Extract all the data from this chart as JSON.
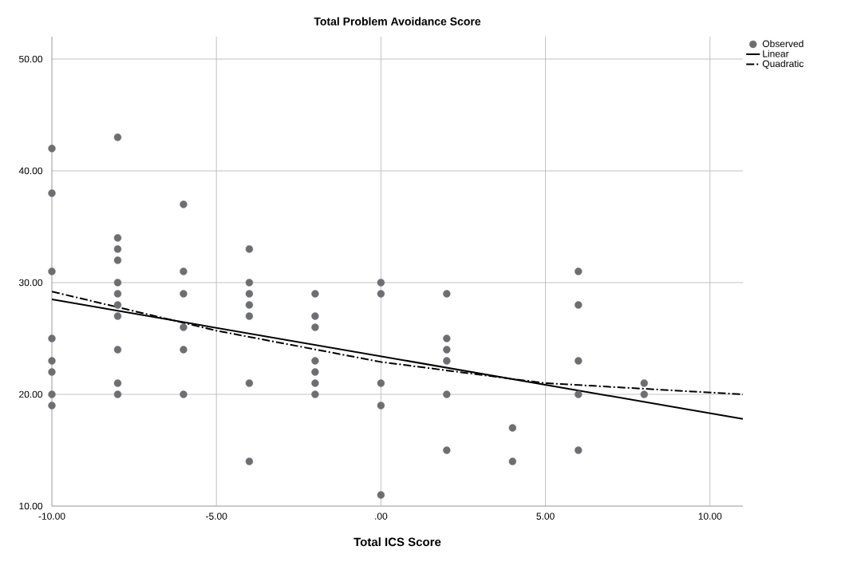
{
  "chart_data": {
    "type": "scatter",
    "title": "Total Problem Avoidance Score",
    "xlabel": "Total ICS Score",
    "xlim": [
      -10,
      11
    ],
    "ylim": [
      10,
      52
    ],
    "xticks": [
      {
        "value": -10,
        "label": "-10.00"
      },
      {
        "value": -5,
        "label": "-5.00"
      },
      {
        "value": 0,
        "label": ".00"
      },
      {
        "value": 5,
        "label": "5.00"
      },
      {
        "value": 10,
        "label": "10.00"
      }
    ],
    "yticks": [
      {
        "value": 10,
        "label": "10.00"
      },
      {
        "value": 20,
        "label": "20.00"
      },
      {
        "value": 30,
        "label": "30.00"
      },
      {
        "value": 40,
        "label": "40.00"
      },
      {
        "value": 50,
        "label": "50.00"
      }
    ],
    "grid": true,
    "legend": "top right",
    "series": [
      {
        "name": "Observed",
        "marker": "circle",
        "color": "#6d6e71",
        "x": [
          -10,
          -10,
          -10,
          -10,
          -10,
          -10,
          -10,
          -10,
          -8,
          -8,
          -8,
          -8,
          -8,
          -8,
          -8,
          -8,
          -8,
          -8,
          -8,
          -6,
          -6,
          -6,
          -6,
          -6,
          -6,
          -4,
          -4,
          -4,
          -4,
          -4,
          -4,
          -4,
          -2,
          -2,
          -2,
          -2,
          -2,
          -2,
          -2,
          0,
          0,
          0,
          0,
          0,
          2,
          2,
          2,
          2,
          2,
          2,
          4,
          4,
          6,
          6,
          6,
          6,
          6,
          8,
          8
        ],
        "values": [
          42,
          38,
          31,
          25,
          23,
          22,
          20,
          19,
          43,
          34,
          33,
          32,
          30,
          29,
          28,
          27,
          24,
          21,
          20,
          37,
          31,
          29,
          26,
          24,
          20,
          33,
          30,
          29,
          28,
          27,
          21,
          14,
          29,
          27,
          26,
          23,
          22,
          21,
          20,
          30,
          29,
          21,
          19,
          11,
          29,
          25,
          24,
          23,
          20,
          15,
          17,
          14,
          31,
          28,
          23,
          20,
          15,
          21,
          20
        ]
      },
      {
        "name": "Linear",
        "type": "line",
        "marker": "none",
        "line_style": "solid",
        "color": "#000000",
        "x": [
          -10,
          11
        ],
        "values": [
          28.5,
          17.8
        ]
      },
      {
        "name": "Quadratic",
        "type": "line",
        "marker": "none",
        "line_style": "dashdot",
        "color": "#000000",
        "x": [
          -10,
          -5,
          0,
          5,
          11
        ],
        "values": [
          29.2,
          25.7,
          22.9,
          21.0,
          20.0
        ]
      }
    ]
  }
}
